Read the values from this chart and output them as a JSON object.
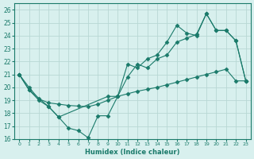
{
  "xlabel": "Humidex (Indice chaleur)",
  "bg_color": "#d8f0ee",
  "line_color": "#1a7a6a",
  "grid_color": "#b8d8d4",
  "xlim": [
    -0.5,
    23.5
  ],
  "ylim": [
    16,
    26.5
  ],
  "xticks": [
    0,
    1,
    2,
    3,
    4,
    5,
    6,
    7,
    8,
    9,
    10,
    11,
    12,
    13,
    14,
    15,
    16,
    17,
    18,
    19,
    20,
    21,
    22,
    23
  ],
  "yticks": [
    16,
    17,
    18,
    19,
    20,
    21,
    22,
    23,
    24,
    25,
    26
  ],
  "series1_x": [
    0,
    1,
    2,
    3,
    4,
    5,
    6,
    7,
    8,
    9,
    10,
    11,
    12,
    13,
    14,
    15,
    16,
    17,
    18,
    19,
    20,
    21,
    22,
    23
  ],
  "series1_y": [
    21.0,
    19.8,
    19.0,
    18.5,
    17.7,
    16.85,
    16.65,
    16.1,
    17.8,
    17.8,
    19.3,
    20.8,
    21.8,
    21.5,
    22.2,
    22.5,
    23.5,
    23.8,
    24.1,
    25.7,
    24.4,
    24.4,
    23.6,
    20.5
  ],
  "series2_x": [
    0,
    1,
    2,
    3,
    4,
    5,
    6,
    7,
    8,
    9,
    10,
    11,
    12,
    13,
    14,
    15,
    16,
    17,
    18,
    19,
    20,
    21,
    22,
    23
  ],
  "series2_y": [
    21.0,
    20.0,
    19.1,
    18.8,
    18.7,
    18.6,
    18.55,
    18.5,
    18.7,
    19.0,
    19.3,
    19.5,
    19.7,
    19.85,
    20.0,
    20.2,
    20.4,
    20.6,
    20.8,
    21.0,
    21.2,
    21.4,
    20.5,
    20.5
  ],
  "series3_x": [
    0,
    1,
    3,
    4,
    9,
    10,
    11,
    12,
    13,
    14,
    15,
    16,
    17,
    18,
    19,
    20,
    21,
    22,
    23
  ],
  "series3_y": [
    21.0,
    19.8,
    18.5,
    17.7,
    19.3,
    19.3,
    21.8,
    21.5,
    22.2,
    22.5,
    23.5,
    24.8,
    24.2,
    24.0,
    25.7,
    24.4,
    24.4,
    23.6,
    20.5
  ]
}
